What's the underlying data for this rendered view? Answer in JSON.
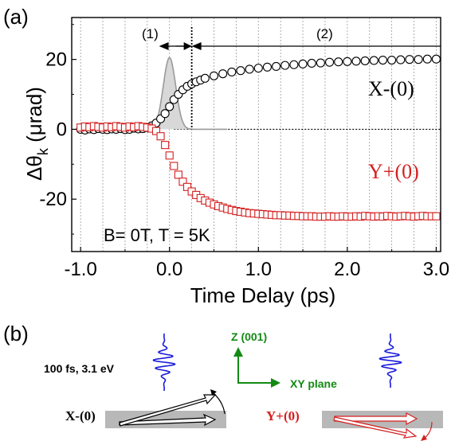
{
  "panel_a_label": "(a)",
  "panel_b_label": "(b)",
  "chart_data": {
    "type": "scatter",
    "xlabel": "Time Delay (ps)",
    "ylabel_main": "Δθ",
    "ylabel_sub": "k",
    "ylabel_unit": "(μrad)",
    "xlim": [
      -1.1,
      3.05
    ],
    "ylim": [
      -35,
      32
    ],
    "x_ticks": [
      -1.0,
      0.0,
      1.0,
      2.0,
      3.0
    ],
    "x_tick_labels": [
      "-1.0",
      "0.0",
      "1.0",
      "2.0",
      "3.0"
    ],
    "y_ticks": [
      -20,
      0,
      20
    ],
    "y_tick_labels": [
      "-20",
      "0",
      "20"
    ],
    "grid": "vertical dotted lines every 0.25 ps",
    "annotation_conditions": "B= 0T, T = 5K",
    "region_1_label": "(1)",
    "region_2_label": "(2)",
    "region_boundary_x": 0.25,
    "series": [
      {
        "name": "X-(0)",
        "marker": "open-circle",
        "color": "#000000",
        "x": [
          -1.0,
          -0.95,
          -0.9,
          -0.85,
          -0.8,
          -0.75,
          -0.7,
          -0.65,
          -0.6,
          -0.55,
          -0.5,
          -0.45,
          -0.4,
          -0.35,
          -0.3,
          -0.25,
          -0.2,
          -0.15,
          -0.1,
          -0.05,
          0.0,
          0.05,
          0.1,
          0.15,
          0.2,
          0.25,
          0.3,
          0.35,
          0.4,
          0.5,
          0.6,
          0.7,
          0.8,
          0.9,
          1.0,
          1.1,
          1.2,
          1.3,
          1.4,
          1.5,
          1.6,
          1.7,
          1.8,
          1.9,
          2.0,
          2.1,
          2.2,
          2.3,
          2.4,
          2.5,
          2.6,
          2.7,
          2.8,
          2.9,
          3.0
        ],
        "y": [
          0,
          -0.2,
          0.1,
          -0.1,
          0.2,
          0,
          -0.1,
          0.1,
          0,
          0.2,
          -0.1,
          0,
          0.3,
          0.1,
          0.2,
          0.5,
          1.0,
          1.8,
          3.0,
          4.5,
          6.5,
          8.5,
          10.0,
          11.3,
          12.3,
          13.0,
          13.6,
          14.1,
          14.6,
          15.3,
          15.9,
          16.4,
          16.8,
          17.2,
          17.5,
          17.8,
          18.0,
          18.3,
          18.5,
          18.7,
          18.9,
          19.0,
          19.2,
          19.3,
          19.4,
          19.5,
          19.6,
          19.7,
          19.8,
          19.8,
          19.9,
          20.0,
          20.0,
          20.1,
          20.1
        ]
      },
      {
        "name": "Y+(0)",
        "marker": "open-square",
        "color": "#d42020",
        "x": [
          -1.0,
          -0.95,
          -0.9,
          -0.85,
          -0.8,
          -0.75,
          -0.7,
          -0.65,
          -0.6,
          -0.55,
          -0.5,
          -0.45,
          -0.4,
          -0.35,
          -0.3,
          -0.25,
          -0.2,
          -0.15,
          -0.1,
          -0.05,
          0.0,
          0.05,
          0.1,
          0.15,
          0.2,
          0.25,
          0.3,
          0.35,
          0.4,
          0.45,
          0.5,
          0.55,
          0.6,
          0.65,
          0.7,
          0.75,
          0.8,
          0.85,
          0.9,
          0.95,
          1.0,
          1.05,
          1.1,
          1.15,
          1.2,
          1.25,
          1.3,
          1.35,
          1.4,
          1.45,
          1.5,
          1.55,
          1.6,
          1.65,
          1.7,
          1.75,
          1.8,
          1.85,
          1.9,
          1.95,
          2.0,
          2.05,
          2.1,
          2.15,
          2.2,
          2.25,
          2.3,
          2.35,
          2.4,
          2.45,
          2.5,
          2.55,
          2.6,
          2.65,
          2.7,
          2.75,
          2.8,
          2.85,
          2.9,
          2.95,
          3.0
        ],
        "y": [
          0.5,
          0.8,
          0.6,
          0.9,
          0.7,
          0.5,
          0.8,
          0.6,
          0.9,
          0.7,
          0.5,
          0.8,
          0.6,
          0.9,
          0.7,
          0.5,
          0.2,
          -0.5,
          -2.0,
          -4.5,
          -7.5,
          -10.5,
          -13.0,
          -15.0,
          -16.5,
          -17.8,
          -18.8,
          -19.7,
          -20.4,
          -21.0,
          -21.5,
          -22.0,
          -22.4,
          -22.8,
          -23.1,
          -23.4,
          -23.6,
          -23.8,
          -24.0,
          -24.1,
          -24.2,
          -24.3,
          -24.4,
          -24.5,
          -24.6,
          -24.6,
          -24.7,
          -24.7,
          -24.8,
          -24.8,
          -24.9,
          -24.9,
          -24.9,
          -25.0,
          -25.0,
          -25.0,
          -24.9,
          -25.0,
          -25.0,
          -24.9,
          -25.0,
          -25.0,
          -24.9,
          -25.0,
          -24.8,
          -24.9,
          -25.0,
          -24.9,
          -25.0,
          -24.8,
          -24.9,
          -25.0,
          -24.9,
          -24.8,
          -24.9,
          -25.0,
          -24.9,
          -24.8,
          -24.9,
          -24.9,
          -24.9
        ]
      },
      {
        "name": "pulse",
        "marker": "gray-filled-gaussian",
        "color": "#9a9a9a",
        "center": 0.0,
        "sigma": 0.07,
        "amplitude": 20.5,
        "x_range": [
          -0.3,
          0.65
        ]
      }
    ]
  },
  "diagram": {
    "pulse_label": "100 fs, 3.1 eV",
    "z_axis_label": "Z (001)",
    "xy_axis_label": "XY plane",
    "left_config_label": "X-(0)",
    "right_config_label": "Y+(0)"
  }
}
